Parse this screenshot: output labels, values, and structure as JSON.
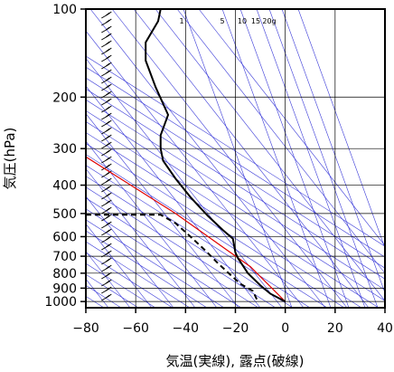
{
  "chart_data": {
    "type": "line",
    "xlabel": "気温(実線), 露点(破線)",
    "ylabel": "気圧(hPa)",
    "xlim": [
      -80,
      40
    ],
    "ylim": [
      1050,
      100
    ],
    "y_scale": "log",
    "x_ticks": [
      "−80",
      "−60",
      "−40",
      "−20",
      "0",
      "20",
      "40"
    ],
    "x_tick_values": [
      -80,
      -60,
      -40,
      -20,
      0,
      20,
      40
    ],
    "y_ticks": [
      "100",
      "200",
      "300",
      "400",
      "500",
      "600",
      "700",
      "800",
      "900",
      "1000"
    ],
    "y_tick_values": [
      100,
      200,
      300,
      400,
      500,
      600,
      700,
      800,
      900,
      1000
    ],
    "mixing_ratio_labels": [
      "1",
      "5",
      "10",
      "15",
      "20g"
    ],
    "series": [
      {
        "name": "気温",
        "style": "solid",
        "color": "#000000",
        "points": [
          [
            -50,
            100
          ],
          [
            -51,
            110
          ],
          [
            -56,
            130
          ],
          [
            -56,
            150
          ],
          [
            -52,
            185
          ],
          [
            -47,
            230
          ],
          [
            -50,
            270
          ],
          [
            -50,
            300
          ],
          [
            -49,
            330
          ],
          [
            -44,
            380
          ],
          [
            -38,
            440
          ],
          [
            -31,
            510
          ],
          [
            -25,
            570
          ],
          [
            -21,
            610
          ],
          [
            -20,
            680
          ],
          [
            -19,
            710
          ],
          [
            -15,
            800
          ],
          [
            -10,
            880
          ],
          [
            -6,
            940
          ],
          [
            0,
            1000
          ]
        ]
      },
      {
        "name": "露点",
        "style": "dashed",
        "color": "#000000",
        "points": [
          [
            -80,
            505
          ],
          [
            -50,
            505
          ],
          [
            -44,
            540
          ],
          [
            -38,
            600
          ],
          [
            -32,
            670
          ],
          [
            -27,
            740
          ],
          [
            -22,
            810
          ],
          [
            -18,
            870
          ],
          [
            -13,
            920
          ],
          [
            -11,
            1000
          ]
        ]
      }
    ],
    "reference_line": {
      "color": "#e00000",
      "points": [
        [
          -80,
          320
        ],
        [
          -44,
          500
        ],
        [
          -14,
          760
        ],
        [
          0,
          1000
        ]
      ]
    },
    "wind_barb_column_x": -73,
    "colors": {
      "grid": "#000000",
      "isolines": "#3a3ad8",
      "temperature": "#000000",
      "dewpoint": "#000000",
      "parcel": "#e00000"
    }
  }
}
